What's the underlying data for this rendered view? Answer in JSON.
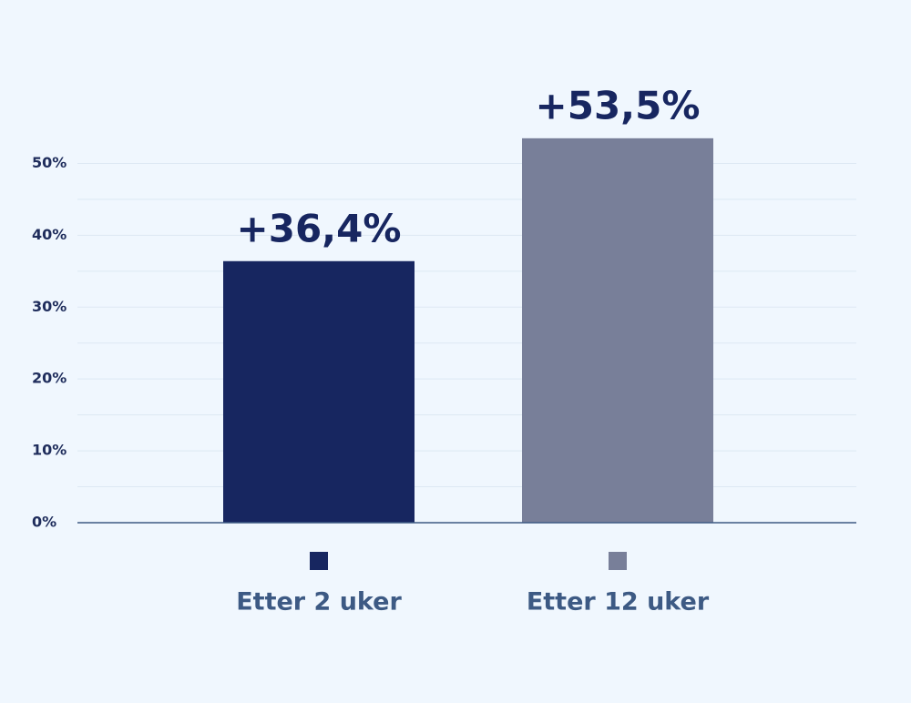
{
  "chart_data": {
    "type": "bar",
    "categories": [
      "Etter 2 uker",
      "Etter 12 uker"
    ],
    "values": [
      36.4,
      53.5
    ],
    "value_labels": [
      "+36,4%",
      "+53,5%"
    ],
    "colors": [
      "#172660",
      "#787f99"
    ],
    "ylim": [
      0,
      55
    ],
    "yticks": [
      {
        "value": 0,
        "label": "0%"
      },
      {
        "value": 10,
        "label": "10%"
      },
      {
        "value": 20,
        "label": "20%"
      },
      {
        "value": 30,
        "label": "30%"
      },
      {
        "value": 40,
        "label": "40%"
      },
      {
        "value": 50,
        "label": "50%"
      }
    ],
    "minor_yticks": [
      5,
      15,
      25,
      35,
      45
    ],
    "grid": true
  }
}
